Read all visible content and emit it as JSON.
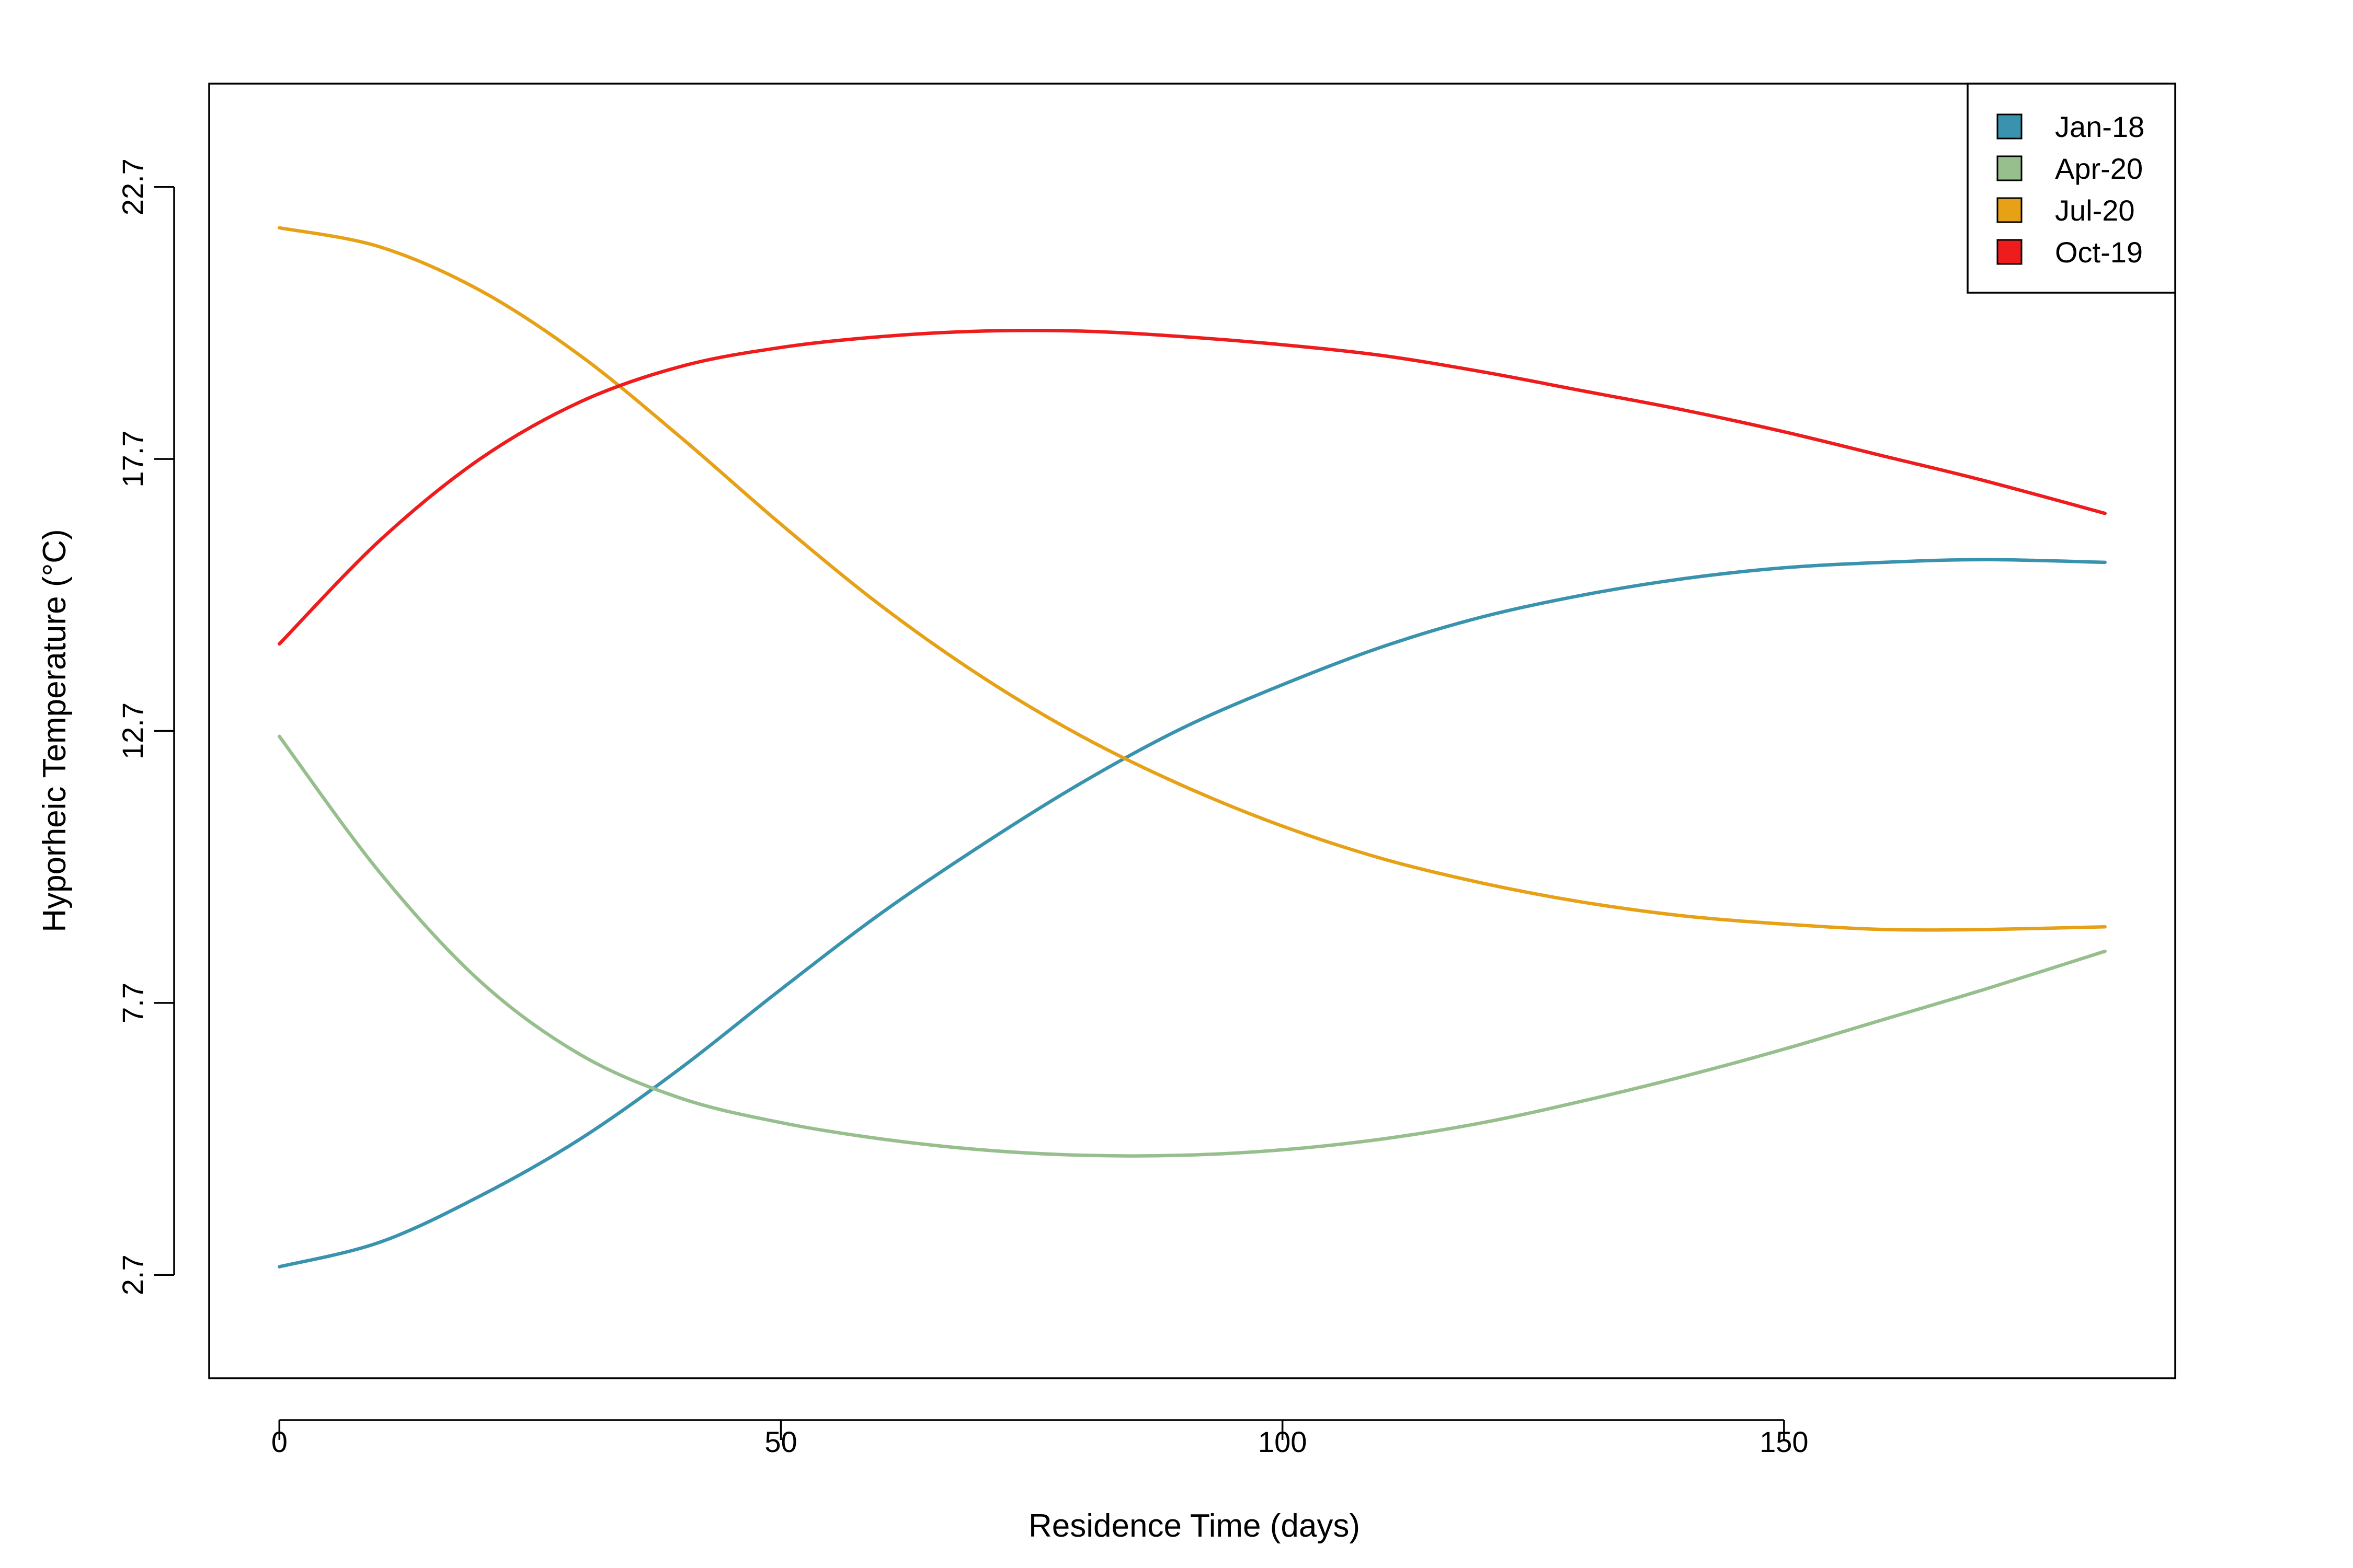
{
  "chart_data": {
    "type": "line",
    "title": "",
    "xlabel": "Residence Time (days)",
    "ylabel": "Hyporheic Temperature (°C)",
    "xlim": [
      -7,
      189
    ],
    "ylim": [
      0.8,
      24.6
    ],
    "x_ticks": [
      0,
      50,
      100,
      150
    ],
    "y_ticks": [
      2.7,
      7.7,
      12.7,
      17.7,
      22.7
    ],
    "x_tick_labels": [
      "0",
      "50",
      "100",
      "150"
    ],
    "y_tick_labels": [
      "2.7",
      "7.7",
      "12.7",
      "17.7",
      "22.7"
    ],
    "grid": false,
    "legend_position": "top-right",
    "series": [
      {
        "name": "Jan-18",
        "color": "#3A93AE",
        "x": [
          0,
          10,
          20,
          30,
          40,
          50,
          60,
          70,
          80,
          90,
          100,
          110,
          120,
          130,
          140,
          150,
          160,
          170,
          182
        ],
        "y": [
          2.85,
          3.3,
          4.15,
          5.2,
          6.5,
          7.95,
          9.35,
          10.6,
          11.75,
          12.75,
          13.55,
          14.25,
          14.8,
          15.2,
          15.5,
          15.7,
          15.8,
          15.85,
          15.8
        ]
      },
      {
        "name": "Apr-20",
        "color": "#97BF8E",
        "x": [
          0,
          10,
          20,
          30,
          40,
          50,
          60,
          70,
          80,
          90,
          100,
          110,
          120,
          130,
          140,
          150,
          160,
          170,
          182
        ],
        "y": [
          12.6,
          10.1,
          8.1,
          6.75,
          5.95,
          5.5,
          5.2,
          5.0,
          4.9,
          4.9,
          5.0,
          5.2,
          5.5,
          5.9,
          6.35,
          6.85,
          7.4,
          7.95,
          8.65
        ]
      },
      {
        "name": "Jul-20",
        "color": "#E6A117",
        "x": [
          0,
          10,
          20,
          30,
          40,
          50,
          60,
          70,
          80,
          90,
          100,
          110,
          120,
          130,
          140,
          150,
          160,
          170,
          182
        ],
        "y": [
          21.95,
          21.6,
          20.8,
          19.6,
          18.1,
          16.5,
          15.0,
          13.7,
          12.6,
          11.7,
          10.95,
          10.35,
          9.9,
          9.55,
          9.3,
          9.15,
          9.05,
          9.05,
          9.1
        ]
      },
      {
        "name": "Oct-19",
        "color": "#EE1C1C",
        "x": [
          0,
          10,
          20,
          30,
          40,
          50,
          60,
          70,
          80,
          90,
          100,
          110,
          120,
          130,
          140,
          150,
          160,
          170,
          182
        ],
        "y": [
          14.3,
          16.2,
          17.7,
          18.75,
          19.4,
          19.75,
          19.95,
          20.05,
          20.05,
          19.95,
          19.8,
          19.6,
          19.3,
          18.95,
          18.6,
          18.2,
          17.75,
          17.3,
          16.7
        ]
      }
    ]
  }
}
